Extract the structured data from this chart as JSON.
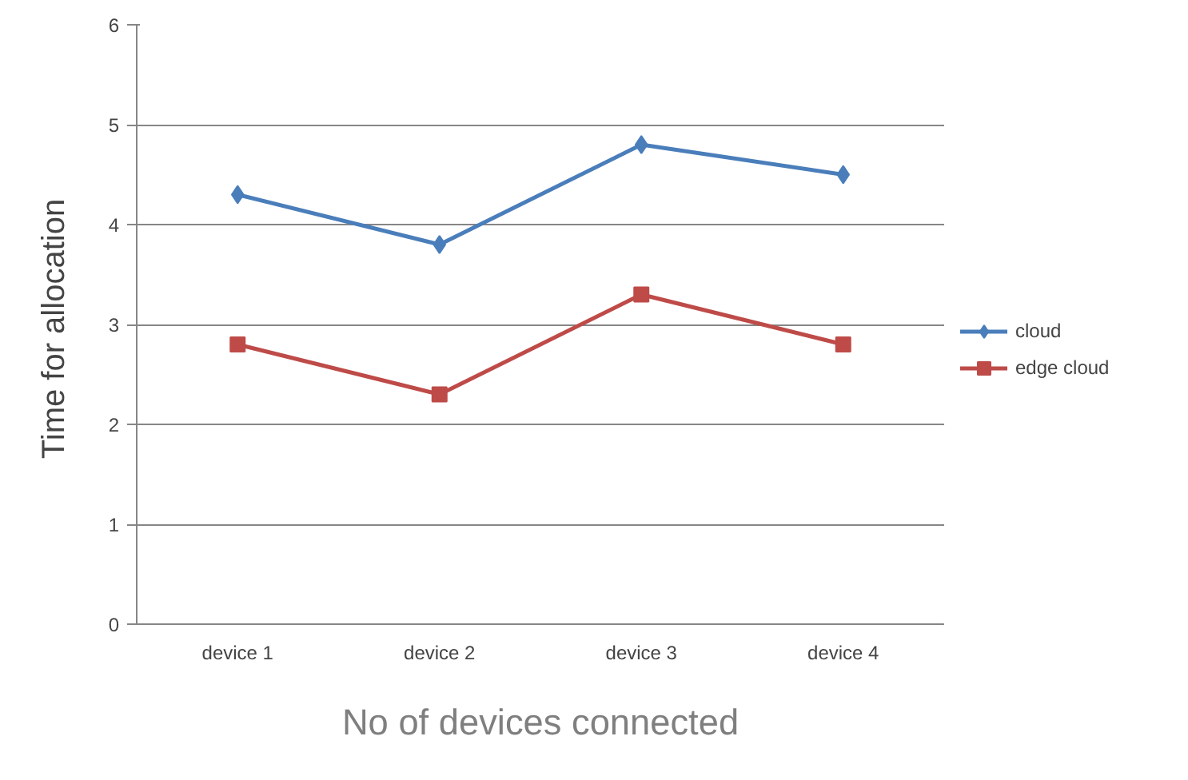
{
  "chart_data": {
    "type": "line",
    "xlabel": "No of devices connected",
    "ylabel": "Time for  allocation",
    "categories": [
      "device 1",
      "device 2",
      "device 3",
      "device 4"
    ],
    "series": [
      {
        "name": "cloud",
        "color": "#4a7ebb",
        "marker": "diamond",
        "values": [
          4.3,
          3.8,
          4.8,
          4.5
        ]
      },
      {
        "name": "edge cloud",
        "color": "#be4b48",
        "marker": "square",
        "values": [
          2.8,
          2.3,
          3.3,
          2.8
        ]
      }
    ],
    "ylim": [
      0,
      6
    ],
    "yticks": [
      0,
      1,
      2,
      3,
      4,
      5,
      6
    ],
    "grid": "y",
    "legend": "right"
  }
}
